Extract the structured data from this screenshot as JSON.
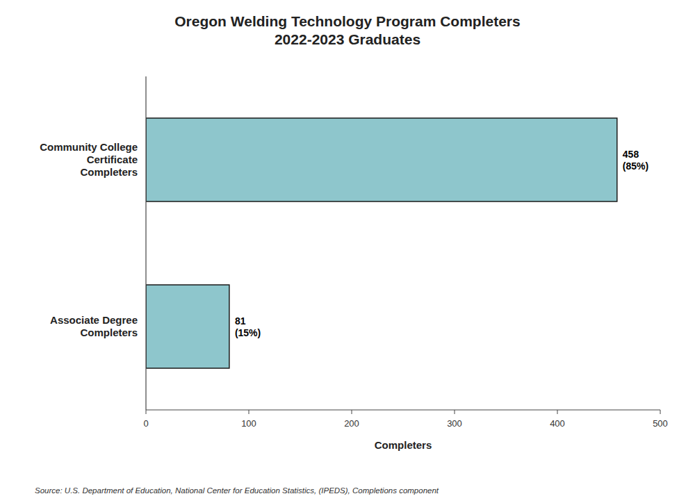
{
  "chart_data": {
    "type": "bar",
    "orientation": "horizontal",
    "title": "Oregon Welding Technology Program Completers\n2022-2023 Graduates",
    "categories": [
      "Associate Degree\nCompleters",
      "Community College\nCertificate\nCompleters"
    ],
    "values": [
      81,
      458
    ],
    "value_labels": [
      "81\n(15%)",
      "458\n(85%)"
    ],
    "data_labels": true,
    "color": "#8ec6cc",
    "xlabel": "Completers",
    "xlim": [
      0,
      500
    ],
    "xticks": [
      0,
      100,
      200,
      300,
      400,
      500
    ],
    "grid": false,
    "source": "Source: U.S. Department of Education, National Center for Education Statistics, (IPEDS), Completions component"
  }
}
